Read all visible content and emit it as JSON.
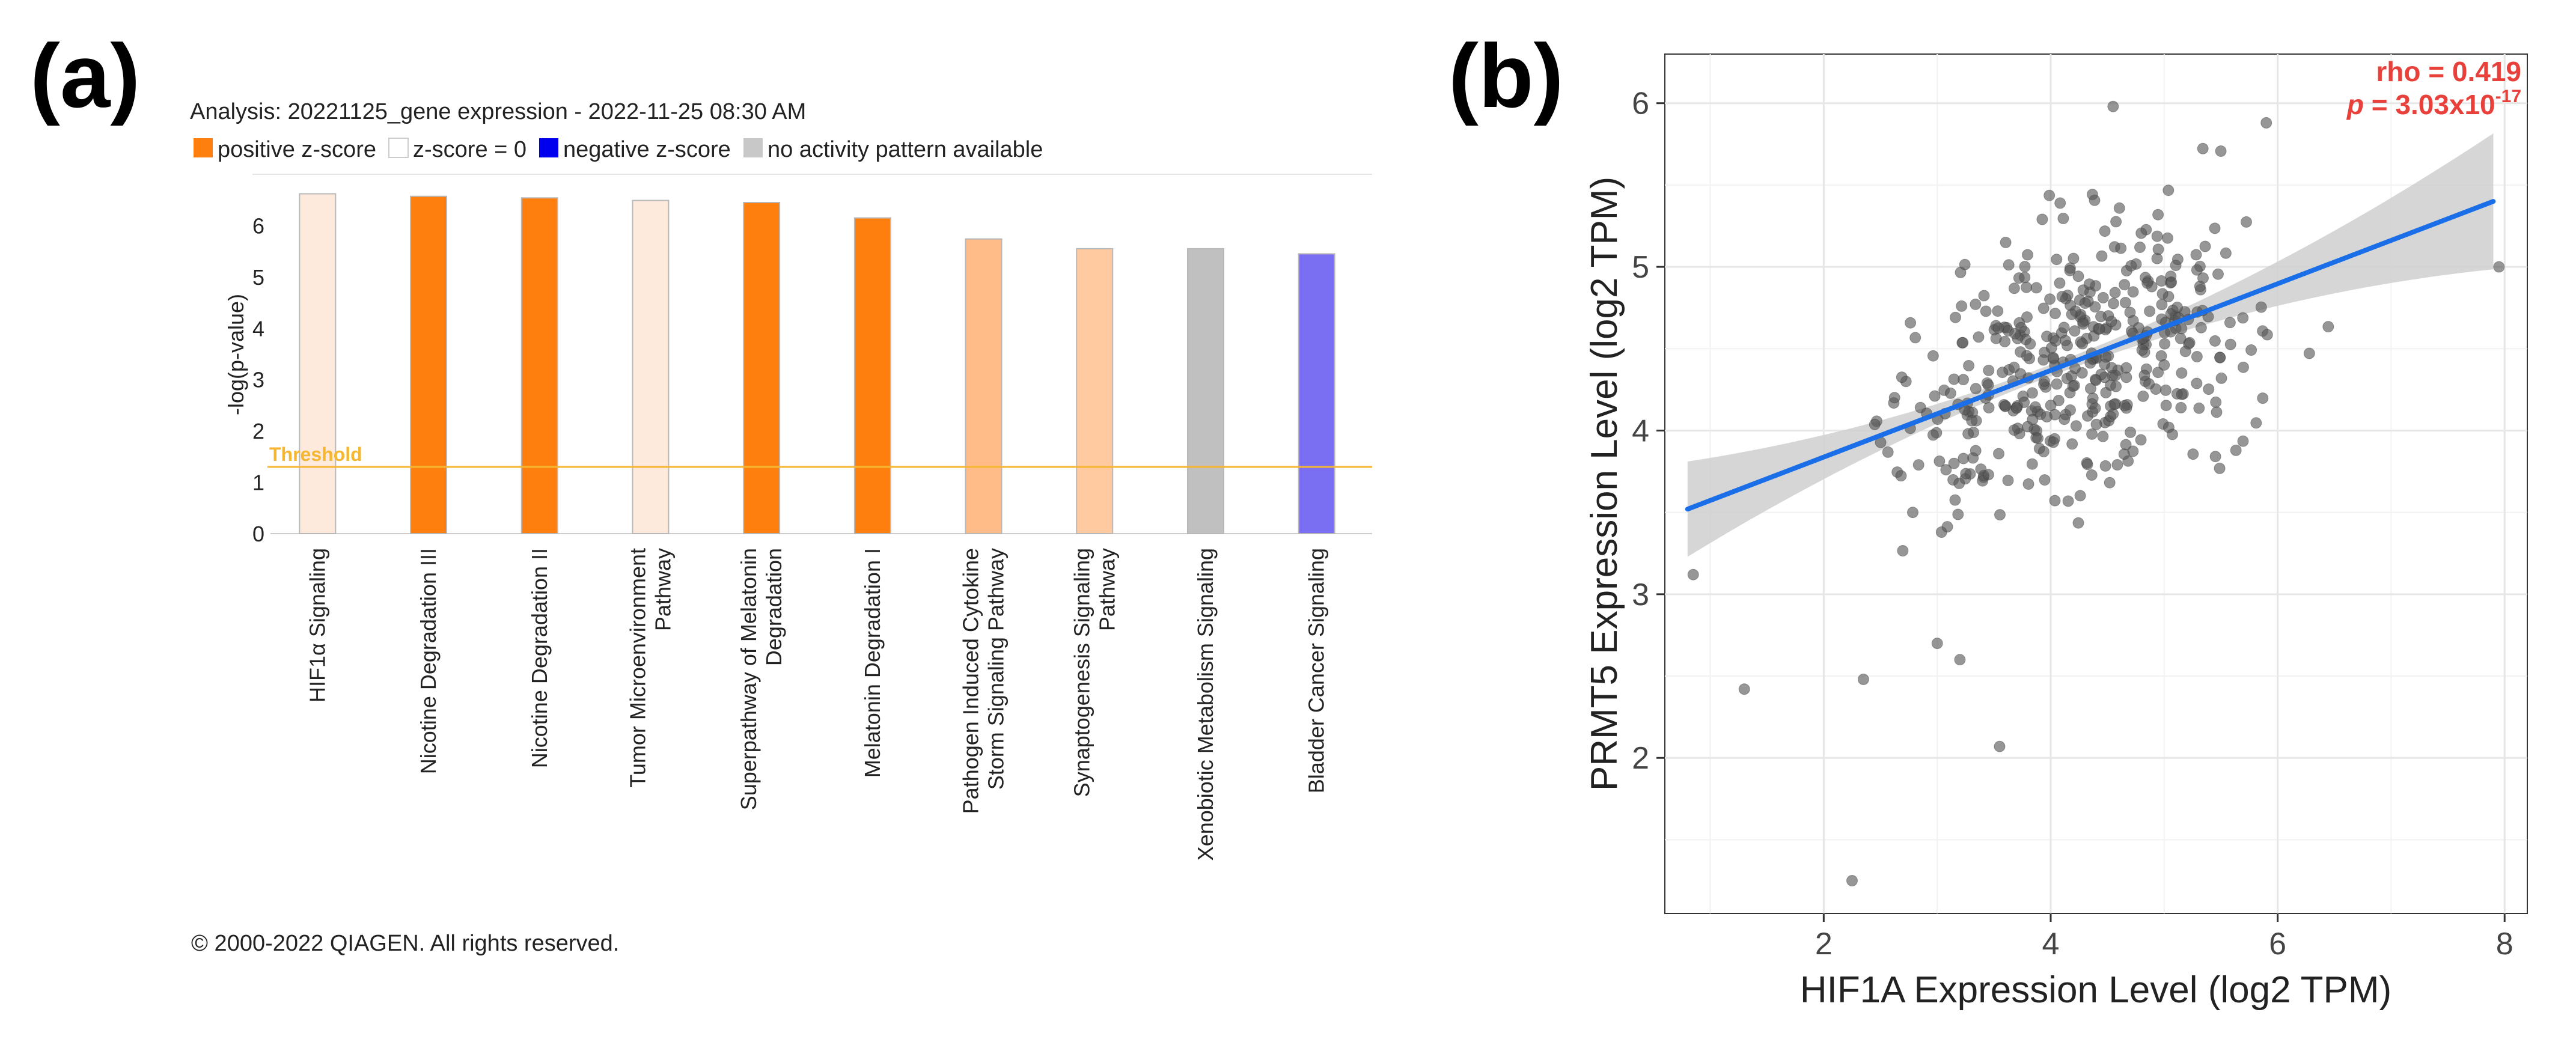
{
  "panel_a_label": "(a)",
  "panel_b_label": "(b)",
  "colors": {
    "positive": "#ff7f0e",
    "positive_light": "#ffbb88",
    "zero": "#fdeadc",
    "negative": "#7a6ef2",
    "none": "#c0c0c0",
    "threshold": "#f5b731",
    "scatter_point": "#555555",
    "reg_line": "#1a6ee8",
    "ci_band": "#cfcfcf",
    "stat_text": "#e8403a",
    "grid": "#e8e8e8"
  },
  "legend": [
    {
      "label": "positive z-score",
      "color": "#ff7f0e"
    },
    {
      "label": "z-score = 0",
      "color": "#ffffff"
    },
    {
      "label": "negative z-score",
      "color": "#0000ee"
    },
    {
      "label": "no activity pattern available",
      "color": "#c8c8c8"
    }
  ],
  "chart_data": [
    {
      "type": "bar",
      "title": "Analysis: 20221125_gene expression - 2022-11-25 08:30 AM",
      "ylabel": "-log(p-value)",
      "xlabel": "",
      "ylim": [
        0,
        7
      ],
      "yticks": [
        0,
        1,
        2,
        3,
        4,
        5,
        6
      ],
      "threshold": {
        "value": 1.3,
        "label": "Threshold"
      },
      "categories": [
        [
          "HIF1α Signaling"
        ],
        [
          "Nicotine Degradation III"
        ],
        [
          "Nicotine Degradation II"
        ],
        [
          "Tumor Microenvironment",
          "Pathway"
        ],
        [
          "Superpathway of Melatonin",
          "Degradation"
        ],
        [
          "Melatonin Degradation I"
        ],
        [
          "Pathogen Induced Cytokine",
          "Storm Signaling Pathway"
        ],
        [
          "Synaptogenesis Signaling",
          "Pathway"
        ],
        [
          "Xenobiotic Metabolism Signaling"
        ],
        [
          "Bladder Cancer Signaling"
        ]
      ],
      "values": [
        6.62,
        6.57,
        6.54,
        6.49,
        6.45,
        6.15,
        5.74,
        5.55,
        5.55,
        5.45
      ],
      "bar_colors": [
        "#fdeadc",
        "#ff7f0e",
        "#ff7f0e",
        "#fdeadc",
        "#ff7f0e",
        "#ff7f0e",
        "#ffbb88",
        "#ffcaa0",
        "#c0c0c0",
        "#7a6ef2"
      ],
      "footer": "© 2000-2022 QIAGEN. All rights reserved."
    },
    {
      "type": "scatter",
      "xlabel": "HIF1A Expression Level (log2 TPM)",
      "ylabel": "PRMT5 Expression Level (log2 TPM)",
      "xlim": [
        0.6,
        8.2
      ],
      "ylim": [
        1.05,
        6.3
      ],
      "xticks": [
        2,
        4,
        6,
        8
      ],
      "yticks": [
        2,
        3,
        4,
        5,
        6
      ],
      "rho_text": "rho = 0.419",
      "p_prefix": "p",
      "p_value_text": " = 3.03x10",
      "p_exponent": "-17",
      "fit": {
        "x": [
          0.8,
          7.9
        ],
        "y": [
          3.52,
          5.4
        ]
      },
      "n_points": 420
    }
  ]
}
